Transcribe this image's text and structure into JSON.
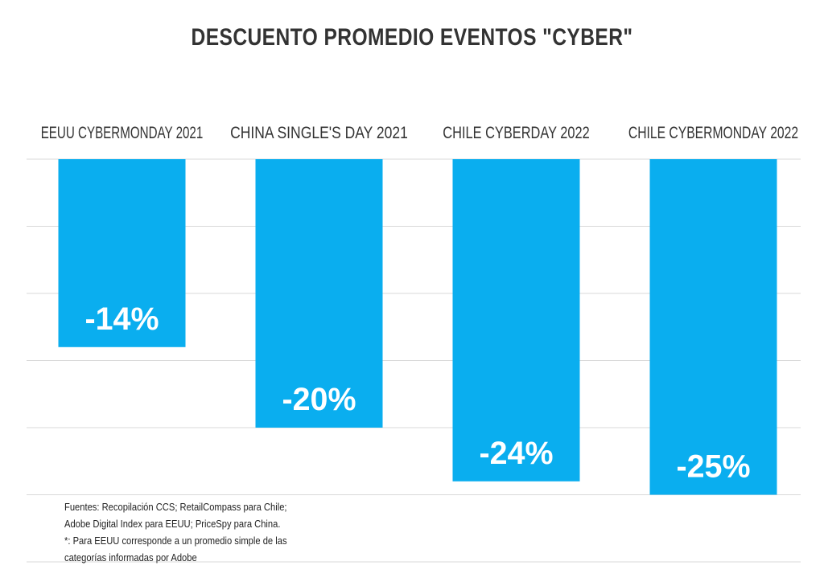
{
  "chart_data": {
    "type": "bar",
    "title": "DESCUENTO PROMEDIO EVENTOS \"CYBER\"",
    "categories": [
      "EEUU CYBERMONDAY 2021",
      "CHINA SINGLE'S DAY 2021",
      "CHILE CYBERDAY 2022",
      "CHILE CYBERMONDAY 2022"
    ],
    "values": [
      -14,
      -20,
      -24,
      -25
    ],
    "data_labels": [
      "-14%",
      "-20%",
      "-24%",
      "-25%"
    ],
    "ylim": [
      -30,
      0
    ],
    "grid": true,
    "bar_color": "#0AAEEF",
    "category_label_position": "top"
  },
  "footnote": {
    "lines": [
      "Fuentes: Recopilación CCS; RetailCompass para Chile;",
      "Adobe Digital Index para EEUU; PriceSpy para China.",
      "*: Para EEUU corresponde a un promedio simple de las",
      "categorías informadas por Adobe"
    ]
  },
  "colors": {
    "title": "#333333",
    "grid": "#d9d9d9",
    "label": "#333333",
    "data_label": "#ffffff"
  }
}
